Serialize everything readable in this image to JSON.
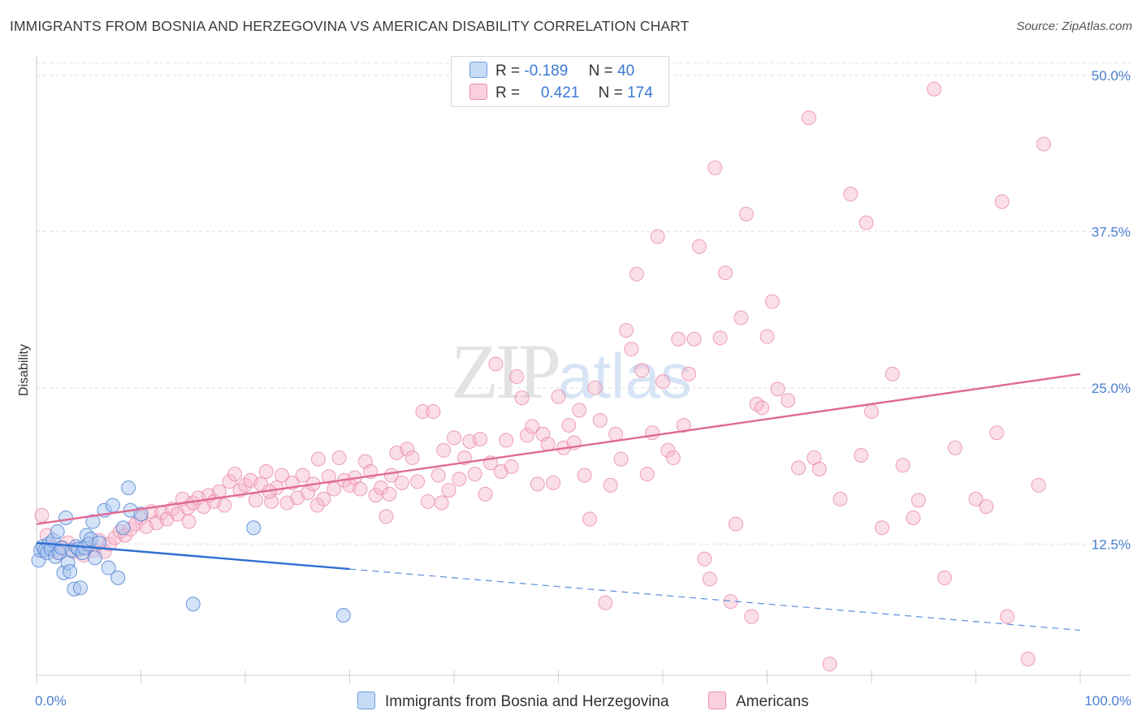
{
  "header": {
    "title": "IMMIGRANTS FROM BOSNIA AND HERZEGOVINA VS AMERICAN DISABILITY CORRELATION CHART",
    "source": "Source: ZipAtlas.com"
  },
  "watermark": {
    "zip": "ZIP",
    "atlas": "atlas"
  },
  "legend": {
    "rows": [
      {
        "r_label": "R =",
        "r_value": "-0.189",
        "n_label": "N =",
        "n_value": "40",
        "color": "#a9c8f0"
      },
      {
        "r_label": "R =",
        "r_value": "0.421",
        "n_label": "N =",
        "n_value": "174",
        "color": "#f6b8cb"
      }
    ]
  },
  "bottom_legend": {
    "series1": "Immigrants from Bosnia and Herzegovina",
    "series2": "Americans"
  },
  "chart_data": {
    "type": "scatter",
    "title": "IMMIGRANTS FROM BOSNIA AND HERZEGOVINA VS AMERICAN DISABILITY CORRELATION CHART",
    "xlabel": "",
    "ylabel": "Disability",
    "xlim": [
      0,
      100
    ],
    "ylim": [
      2,
      52
    ],
    "x_tick_labels": [
      "0.0%",
      "100.0%"
    ],
    "y_ticks": [
      12.5,
      25.0,
      37.5,
      50.0
    ],
    "y_tick_labels": [
      "12.5%",
      "25.0%",
      "37.5%",
      "50.0%"
    ],
    "grid": true,
    "colors": {
      "blue": "#3a78d6",
      "blue_fill": "#a9c8f0",
      "pink": "#e06a93",
      "pink_fill": "#f6b8cb"
    },
    "series": [
      {
        "name": "Immigrants from Bosnia and Herzegovina",
        "color": "#3a78d6",
        "trend": {
          "x0": 0,
          "y0": 12.6,
          "x1": 30,
          "y1": 10.5,
          "dash_to_x": 100,
          "dash_to_y": 5.6
        },
        "points": [
          [
            0.2,
            11.2
          ],
          [
            0.4,
            12.0
          ],
          [
            0.6,
            12.3
          ],
          [
            0.8,
            12.0
          ],
          [
            1.0,
            11.8
          ],
          [
            1.2,
            12.5
          ],
          [
            1.4,
            12.1
          ],
          [
            1.6,
            12.8
          ],
          [
            1.8,
            11.5
          ],
          [
            2.0,
            13.5
          ],
          [
            2.2,
            11.8
          ],
          [
            2.4,
            12.2
          ],
          [
            2.6,
            10.2
          ],
          [
            2.8,
            14.6
          ],
          [
            3.0,
            11.0
          ],
          [
            3.2,
            10.3
          ],
          [
            3.4,
            12.0
          ],
          [
            3.6,
            8.9
          ],
          [
            3.8,
            12.3
          ],
          [
            4.0,
            12.1
          ],
          [
            4.2,
            9.0
          ],
          [
            4.4,
            11.8
          ],
          [
            4.6,
            12.2
          ],
          [
            4.8,
            13.2
          ],
          [
            5.0,
            12.5
          ],
          [
            5.2,
            12.9
          ],
          [
            5.4,
            14.3
          ],
          [
            5.6,
            11.4
          ],
          [
            6.0,
            12.6
          ],
          [
            6.5,
            15.2
          ],
          [
            6.9,
            10.6
          ],
          [
            7.3,
            15.6
          ],
          [
            7.8,
            9.8
          ],
          [
            8.3,
            13.8
          ],
          [
            8.8,
            17.0
          ],
          [
            9.0,
            15.2
          ],
          [
            10.0,
            14.9
          ],
          [
            15.0,
            7.7
          ],
          [
            20.8,
            13.8
          ],
          [
            29.4,
            6.8
          ]
        ]
      },
      {
        "name": "Americans",
        "color": "#e06a93",
        "trend": {
          "x0": 0,
          "y0": 14.1,
          "x1": 100,
          "y1": 26.1
        },
        "points": [
          [
            0.5,
            14.8
          ],
          [
            1.0,
            13.2
          ],
          [
            1.5,
            12.3
          ],
          [
            2.0,
            11.8
          ],
          [
            2.5,
            12.2
          ],
          [
            3.0,
            12.6
          ],
          [
            3.5,
            11.9
          ],
          [
            4.0,
            12.1
          ],
          [
            4.5,
            11.6
          ],
          [
            5.0,
            12.4
          ],
          [
            5.5,
            12.0
          ],
          [
            6.0,
            12.8
          ],
          [
            6.5,
            11.9
          ],
          [
            7.0,
            12.5
          ],
          [
            7.5,
            13.0
          ],
          [
            8.0,
            13.5
          ],
          [
            8.5,
            13.2
          ],
          [
            9.0,
            13.7
          ],
          [
            9.5,
            14.1
          ],
          [
            10.0,
            14.6
          ],
          [
            10.5,
            13.9
          ],
          [
            11.0,
            15.1
          ],
          [
            11.5,
            14.2
          ],
          [
            12.0,
            15.0
          ],
          [
            12.5,
            14.5
          ],
          [
            13.0,
            15.3
          ],
          [
            13.5,
            14.9
          ],
          [
            14.0,
            16.1
          ],
          [
            14.5,
            15.4
          ],
          [
            15.0,
            15.8
          ],
          [
            15.5,
            16.2
          ],
          [
            16.0,
            15.5
          ],
          [
            16.5,
            16.4
          ],
          [
            17.0,
            15.9
          ],
          [
            17.5,
            16.7
          ],
          [
            18.0,
            15.6
          ],
          [
            18.5,
            17.5
          ],
          [
            19.0,
            18.1
          ],
          [
            19.5,
            16.8
          ],
          [
            20.0,
            17.2
          ],
          [
            20.5,
            17.6
          ],
          [
            21.0,
            16.0
          ],
          [
            21.5,
            17.3
          ],
          [
            22.0,
            18.3
          ],
          [
            22.5,
            15.9
          ],
          [
            23.0,
            17.0
          ],
          [
            23.5,
            18.0
          ],
          [
            24.0,
            15.8
          ],
          [
            24.5,
            17.4
          ],
          [
            25.0,
            16.2
          ],
          [
            25.5,
            18.0
          ],
          [
            26.0,
            16.6
          ],
          [
            26.5,
            17.3
          ],
          [
            27.0,
            19.3
          ],
          [
            27.5,
            16.1
          ],
          [
            28.0,
            17.9
          ],
          [
            28.5,
            16.9
          ],
          [
            29.0,
            19.4
          ],
          [
            29.5,
            17.6
          ],
          [
            30.0,
            17.2
          ],
          [
            30.5,
            17.8
          ],
          [
            31.0,
            16.9
          ],
          [
            31.5,
            19.1
          ],
          [
            32.0,
            18.3
          ],
          [
            32.5,
            16.4
          ],
          [
            33.0,
            17.0
          ],
          [
            33.5,
            14.7
          ],
          [
            34.0,
            18.0
          ],
          [
            34.5,
            19.8
          ],
          [
            35.0,
            17.4
          ],
          [
            35.5,
            20.1
          ],
          [
            36.0,
            19.4
          ],
          [
            36.5,
            17.5
          ],
          [
            37.0,
            23.1
          ],
          [
            37.5,
            15.9
          ],
          [
            38.0,
            23.1
          ],
          [
            38.5,
            18.0
          ],
          [
            39.0,
            20.0
          ],
          [
            39.5,
            16.8
          ],
          [
            40.0,
            21.0
          ],
          [
            40.5,
            17.7
          ],
          [
            41.0,
            19.4
          ],
          [
            41.5,
            20.7
          ],
          [
            42.0,
            18.1
          ],
          [
            42.5,
            20.9
          ],
          [
            43.0,
            16.5
          ],
          [
            43.5,
            19.0
          ],
          [
            44.0,
            26.9
          ],
          [
            44.5,
            18.3
          ],
          [
            45.0,
            20.8
          ],
          [
            45.5,
            18.7
          ],
          [
            46.0,
            25.9
          ],
          [
            46.5,
            24.2
          ],
          [
            47.0,
            21.2
          ],
          [
            47.5,
            21.9
          ],
          [
            48.0,
            17.3
          ],
          [
            48.5,
            21.3
          ],
          [
            49.0,
            20.5
          ],
          [
            49.5,
            17.4
          ],
          [
            50.0,
            24.3
          ],
          [
            50.5,
            20.2
          ],
          [
            51.0,
            22.0
          ],
          [
            51.5,
            20.6
          ],
          [
            52.0,
            23.2
          ],
          [
            52.5,
            18.0
          ],
          [
            53.0,
            14.5
          ],
          [
            53.5,
            25.0
          ],
          [
            54.0,
            22.4
          ],
          [
            54.5,
            7.8
          ],
          [
            55.0,
            17.2
          ],
          [
            55.5,
            21.3
          ],
          [
            56.0,
            19.3
          ],
          [
            56.5,
            29.6
          ],
          [
            57.0,
            28.1
          ],
          [
            57.5,
            34.1
          ],
          [
            58.0,
            26.4
          ],
          [
            58.5,
            18.1
          ],
          [
            59.0,
            21.4
          ],
          [
            59.5,
            37.1
          ],
          [
            60.0,
            25.5
          ],
          [
            60.5,
            20.0
          ],
          [
            61.0,
            19.4
          ],
          [
            61.5,
            28.9
          ],
          [
            62.0,
            22.0
          ],
          [
            62.5,
            26.1
          ],
          [
            63.0,
            28.9
          ],
          [
            63.5,
            36.3
          ],
          [
            64.0,
            11.3
          ],
          [
            64.5,
            9.7
          ],
          [
            65.0,
            42.6
          ],
          [
            65.5,
            29.0
          ],
          [
            66.0,
            34.2
          ],
          [
            66.5,
            7.9
          ],
          [
            67.0,
            14.1
          ],
          [
            67.5,
            30.6
          ],
          [
            68.0,
            38.9
          ],
          [
            68.5,
            6.7
          ],
          [
            69.0,
            23.7
          ],
          [
            69.5,
            23.4
          ],
          [
            70.0,
            29.1
          ],
          [
            70.5,
            31.9
          ],
          [
            71.0,
            24.9
          ],
          [
            72.0,
            24.0
          ],
          [
            73.0,
            18.6
          ],
          [
            74.0,
            46.6
          ],
          [
            74.5,
            19.4
          ],
          [
            75.0,
            18.5
          ],
          [
            76.0,
            2.9
          ],
          [
            77.0,
            16.1
          ],
          [
            78.0,
            40.5
          ],
          [
            79.0,
            19.6
          ],
          [
            79.5,
            38.2
          ],
          [
            80.0,
            23.1
          ],
          [
            81.0,
            13.8
          ],
          [
            82.0,
            26.1
          ],
          [
            83.0,
            18.8
          ],
          [
            84.0,
            14.6
          ],
          [
            84.5,
            16.0
          ],
          [
            86.0,
            48.9
          ],
          [
            87.0,
            9.8
          ],
          [
            88.0,
            20.2
          ],
          [
            90.0,
            16.1
          ],
          [
            91.0,
            15.5
          ],
          [
            92.0,
            21.4
          ],
          [
            92.5,
            39.9
          ],
          [
            93.0,
            6.7
          ],
          [
            95.0,
            3.3
          ],
          [
            96.0,
            17.2
          ],
          [
            96.5,
            44.5
          ],
          [
            14.6,
            14.3
          ],
          [
            22.3,
            16.7
          ],
          [
            26.9,
            15.6
          ],
          [
            33.8,
            16.5
          ],
          [
            38.8,
            15.8
          ]
        ]
      }
    ]
  }
}
